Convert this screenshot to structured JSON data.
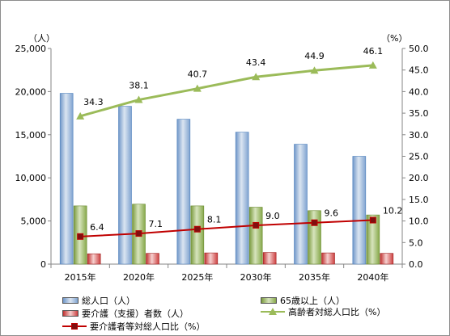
{
  "chart_data": {
    "type": "bar",
    "categories": [
      "2015年",
      "2020年",
      "2025年",
      "2030年",
      "2035年",
      "2040年"
    ],
    "y_left_unit": "（人）",
    "y_right_unit": "（%）",
    "y_left_ticks": [
      "0",
      "5,000",
      "10,000",
      "15,000",
      "20,000",
      "25,000"
    ],
    "y_right_ticks": [
      "0.0",
      "5.0",
      "10.0",
      "15.0",
      "20.0",
      "25.0",
      "30.0",
      "35.0",
      "40.0",
      "45.0",
      "50.0"
    ],
    "ylim_left": [
      0,
      25000
    ],
    "ylim_right": [
      0,
      50
    ],
    "bar_series": [
      {
        "name": "総人口（人）",
        "values": [
          19800,
          18300,
          16800,
          15300,
          13900,
          12500
        ],
        "color": "#95b3d7"
      },
      {
        "name": "65歳以上（人）",
        "values": [
          6750,
          6950,
          6750,
          6600,
          6200,
          5700
        ],
        "color": "#9bbb59"
      },
      {
        "name": "要介護（支援）者数（人）",
        "values": [
          1200,
          1250,
          1300,
          1350,
          1300,
          1250
        ],
        "color": "#e06060"
      }
    ],
    "line_series": [
      {
        "name": "高齢者対総人口比（%）",
        "values": [
          34.3,
          38.1,
          40.7,
          43.4,
          44.9,
          46.1
        ],
        "labels": [
          "34.3",
          "38.1",
          "40.7",
          "43.4",
          "44.9",
          "46.1"
        ],
        "color": "#9bbb59",
        "marker": "triangle"
      },
      {
        "name": "要介護者等対総人口比（%）",
        "values": [
          6.4,
          7.1,
          8.1,
          9.0,
          9.6,
          10.2
        ],
        "labels": [
          "6.4",
          "7.1",
          "8.1",
          "9.0",
          "9.6",
          "10.2"
        ],
        "color": "#c00000",
        "marker": "square"
      }
    ],
    "legend_position": "bottom",
    "grid": false
  }
}
